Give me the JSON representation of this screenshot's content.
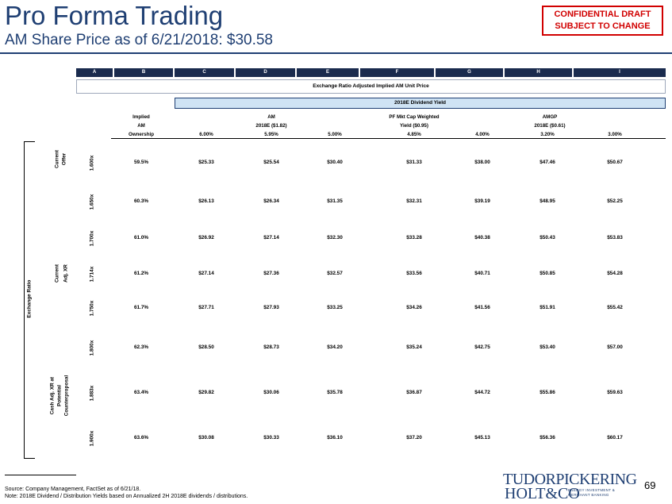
{
  "header": {
    "title": "Pro Forma Trading",
    "subtitle": "AM Share Price as of  6/21/2018: $30.58",
    "confidential_line1": "CONFIDENTIAL DRAFT",
    "confidential_line2": "SUBJECT TO CHANGE"
  },
  "column_letters": [
    "A",
    "B",
    "C",
    "D",
    "E",
    "F",
    "G",
    "H",
    "I"
  ],
  "exchange_box_label": "Exchange Ratio Adjusted Implied AM Unit Price",
  "yield_box_label": "2018E Dividend Yield",
  "headers": {
    "implied_1": "Implied",
    "implied_2": "AM",
    "implied_3": "Ownership",
    "am_1": "AM",
    "am_2": "2018E ($1.82)",
    "pf_1": "PF Mkt Cap Weighted",
    "pf_2": "Yield ($0.95)",
    "amgp_1": "AMGP",
    "amgp_2": "2018E ($0.61)",
    "yields": [
      "6.00%",
      "5.95%",
      "5.00%",
      "4.85%",
      "4.00%",
      "3.20%",
      "3.00%"
    ]
  },
  "side_labels": {
    "exchange_ratio": "Exchange Ratio",
    "current_offer_1": "Current",
    "current_offer_2": "Offer",
    "current_adj_1": "Current",
    "current_adj_2": "Adj. XR",
    "cash_adj_1": "Cash Adj. XR at",
    "cash_adj_2": "Potential",
    "cash_adj_3": "Counterproposal"
  },
  "rows": [
    {
      "ratio": "1.600x",
      "ownership": "59.5%",
      "values": [
        "$25.33",
        "$25.54",
        "$30.40",
        "$31.33",
        "$38.00",
        "$47.46",
        "$50.67"
      ]
    },
    {
      "ratio": "1.650x",
      "ownership": "60.3%",
      "values": [
        "$26.13",
        "$26.34",
        "$31.35",
        "$32.31",
        "$39.19",
        "$48.95",
        "$52.25"
      ]
    },
    {
      "ratio": "1.700x",
      "ownership": "61.0%",
      "values": [
        "$26.92",
        "$27.14",
        "$32.30",
        "$33.28",
        "$40.38",
        "$50.43",
        "$53.83"
      ]
    },
    {
      "ratio": "1.714x",
      "ownership": "61.2%",
      "values": [
        "$27.14",
        "$27.36",
        "$32.57",
        "$33.56",
        "$40.71",
        "$50.85",
        "$54.28"
      ]
    },
    {
      "ratio": "1.750x",
      "ownership": "61.7%",
      "values": [
        "$27.71",
        "$27.93",
        "$33.25",
        "$34.26",
        "$41.56",
        "$51.91",
        "$55.42"
      ]
    },
    {
      "ratio": "1.800x",
      "ownership": "62.3%",
      "values": [
        "$28.50",
        "$28.73",
        "$34.20",
        "$35.24",
        "$42.75",
        "$53.40",
        "$57.00"
      ]
    },
    {
      "ratio": "1.883x",
      "ownership": "63.4%",
      "values": [
        "$29.82",
        "$30.06",
        "$35.78",
        "$36.87",
        "$44.72",
        "$55.86",
        "$59.63"
      ]
    },
    {
      "ratio": "1.900x",
      "ownership": "63.6%",
      "values": [
        "$30.08",
        "$30.33",
        "$36.10",
        "$37.20",
        "$45.13",
        "$56.36",
        "$60.17"
      ]
    }
  ],
  "footer": {
    "source": "Source: Company Management, FactSet as of 6/21/18.",
    "note": "Note: 2018E Dividend / Distribution Yields based on Annualized 2H 2018E dividends / distributions.",
    "logo_line1": "TUDORPICKERING",
    "logo_line2": "HOLT&CO",
    "logo_small_1": "ENERGY INVESTMENT &",
    "logo_small_2": "MERCHANT BANKING",
    "page_number": "69"
  },
  "colors": {
    "title_navy": "#1f3f73",
    "confidential_red": "#d10000",
    "column_letter_bar": "#1a2b4e",
    "yield_box_fill": "#cfe3f4"
  }
}
